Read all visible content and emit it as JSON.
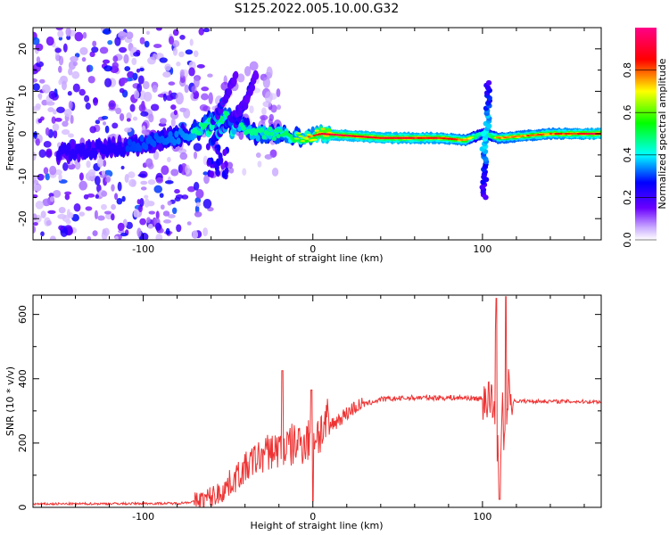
{
  "title": "S125.2022.005.10.00.G32",
  "chart_data": [
    {
      "type": "heatmap",
      "xlabel": "Height of straight line (km)",
      "ylabel": "Frequency (Hz)",
      "xlim": [
        -165,
        170
      ],
      "ylim": [
        -25,
        25
      ],
      "x_ticks": [
        -100,
        0,
        100
      ],
      "y_ticks": [
        -20,
        -10,
        0,
        10,
        20
      ],
      "colorbar": {
        "label": "Normalized spectral amplitude",
        "range": [
          0,
          1
        ],
        "ticks": [
          0.0,
          0.2,
          0.4,
          0.6,
          0.8
        ],
        "colormap": [
          "#e8d8ff",
          "#7a00ff",
          "#0000ff",
          "#00ffff",
          "#00ff00",
          "#ffff00",
          "#ff0000",
          "#ff0080"
        ]
      },
      "ridge": [
        {
          "x": -160,
          "f": -5,
          "a": 0.25
        },
        {
          "x": -110,
          "f": -3,
          "a": 0.3
        },
        {
          "x": -90,
          "f": -1.5,
          "a": 0.35
        },
        {
          "x": -72,
          "f": 0,
          "a": 0.45
        },
        {
          "x": -60,
          "f": 3,
          "a": 0.6
        },
        {
          "x": -50,
          "f": 4,
          "a": 0.55
        },
        {
          "x": -35,
          "f": 0,
          "a": 0.5
        },
        {
          "x": -20,
          "f": 0,
          "a": 0.55
        },
        {
          "x": -5,
          "f": -1,
          "a": 0.7
        },
        {
          "x": 5,
          "f": 0,
          "a": 0.9
        },
        {
          "x": 40,
          "f": -1,
          "a": 0.9
        },
        {
          "x": 75,
          "f": -1,
          "a": 0.85
        },
        {
          "x": 90,
          "f": -1.5,
          "a": 0.8
        },
        {
          "x": 100,
          "f": 0,
          "a": 0.4
        },
        {
          "x": 110,
          "f": -1,
          "a": 0.75
        },
        {
          "x": 140,
          "f": 0,
          "a": 0.8
        },
        {
          "x": 170,
          "f": 0,
          "a": 0.9
        }
      ]
    },
    {
      "type": "line",
      "xlabel": "Height of straight line (km)",
      "ylabel": "SNR (10 * v/v)",
      "xlim": [
        -165,
        170
      ],
      "ylim": [
        0,
        660
      ],
      "x_ticks": [
        -100,
        0,
        100
      ],
      "y_ticks": [
        0,
        200,
        400,
        600
      ],
      "color": "#ee3333",
      "envelope": [
        {
          "x": -165,
          "y": 10
        },
        {
          "x": -80,
          "y": 12
        },
        {
          "x": -65,
          "y": 20
        },
        {
          "x": -55,
          "y": 40
        },
        {
          "x": -45,
          "y": 90
        },
        {
          "x": -35,
          "y": 140
        },
        {
          "x": -25,
          "y": 170
        },
        {
          "x": -15,
          "y": 180
        },
        {
          "x": -5,
          "y": 200
        },
        {
          "x": 5,
          "y": 230
        },
        {
          "x": 15,
          "y": 270
        },
        {
          "x": 25,
          "y": 310
        },
        {
          "x": 40,
          "y": 335
        },
        {
          "x": 60,
          "y": 340
        },
        {
          "x": 90,
          "y": 340
        },
        {
          "x": 104,
          "y": 335
        },
        {
          "x": 110,
          "y": 180
        },
        {
          "x": 116,
          "y": 330
        },
        {
          "x": 170,
          "y": 328
        }
      ],
      "peaks": [
        {
          "x": -18,
          "y": 425
        },
        {
          "x": -1,
          "y": 365
        },
        {
          "x": 108,
          "y": 650
        },
        {
          "x": 114,
          "y": 655
        }
      ],
      "dips": [
        {
          "x": 0,
          "y": 20
        },
        {
          "x": 110,
          "y": 25
        }
      ]
    }
  ]
}
